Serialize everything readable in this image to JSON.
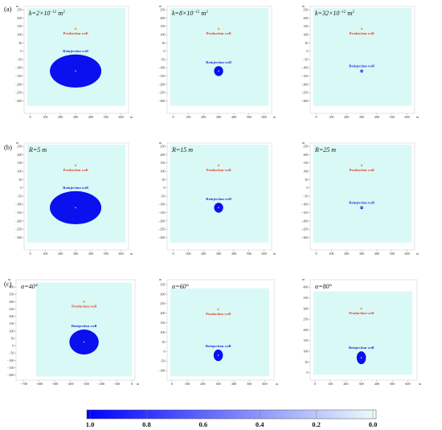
{
  "colors": {
    "domain": "#d9f9f7",
    "plume": "#0a10ee",
    "production_label": "#e33b1f",
    "reinjection_label": "#1b2ad6",
    "production_marker": "#f2a640",
    "colorbar_start": "#0000ff",
    "colorbar_end": "#eefcfb"
  },
  "row_labels": [
    "(a)",
    "(b)",
    "(c)"
  ],
  "well_labels": {
    "production": "Production well",
    "reinjection": "Reinjection well"
  },
  "axis_unit": "m",
  "panels": [
    {
      "title": {
        "prefix": "k=2×10",
        "sup": "−12",
        "suffix": " m",
        "sup2": "2"
      },
      "x": {
        "min": -40,
        "max": 650,
        "ticks": [
          "0",
          "100",
          "200",
          "300",
          "400",
          "500",
          "600"
        ]
      },
      "y": {
        "min": -375,
        "max": 270,
        "ticks": [
          "250",
          "200",
          "150",
          "100",
          "50",
          "0",
          "−50",
          "−100",
          "−150",
          "−200",
          "−250",
          "−300"
        ]
      },
      "domain_bounds": {
        "x": [
          -20,
          630
        ],
        "y": [
          -330,
          260
        ]
      },
      "production_well": {
        "x": 300,
        "y": 135
      },
      "reinjection_well": {
        "x": 300,
        "y": -120
      },
      "plume": {
        "rx": 170,
        "ry": 100
      }
    },
    {
      "title": {
        "prefix": "k=8×10",
        "sup": "−12",
        "suffix": " m",
        "sup2": "2"
      },
      "x": {
        "min": -40,
        "max": 650,
        "ticks": [
          "0",
          "100",
          "200",
          "300",
          "400",
          "500",
          "600"
        ]
      },
      "y": {
        "min": -375,
        "max": 270,
        "ticks": [
          "250",
          "200",
          "150",
          "100",
          "50",
          "0",
          "−50",
          "−100",
          "−150",
          "−200",
          "−250",
          "−300"
        ]
      },
      "domain_bounds": {
        "x": [
          -20,
          630
        ],
        "y": [
          -330,
          260
        ]
      },
      "production_well": {
        "x": 300,
        "y": 135
      },
      "reinjection_well": {
        "x": 300,
        "y": -120
      },
      "plume": {
        "rx": 30,
        "ry": 30
      }
    },
    {
      "title": {
        "prefix": "k=32×10",
        "sup": "−12",
        "suffix": " m",
        "sup2": "2"
      },
      "x": {
        "min": -40,
        "max": 650,
        "ticks": [
          "0",
          "100",
          "200",
          "300",
          "400",
          "500",
          "600"
        ]
      },
      "y": {
        "min": -375,
        "max": 270,
        "ticks": [
          "250",
          "200",
          "150",
          "100",
          "50",
          "0",
          "−50",
          "−100",
          "−150",
          "−200",
          "−250",
          "−300"
        ]
      },
      "domain_bounds": {
        "x": [
          -20,
          630
        ],
        "y": [
          -330,
          260
        ]
      },
      "production_well": {
        "x": 300,
        "y": 135
      },
      "reinjection_well": {
        "x": 300,
        "y": -120
      },
      "plume": {
        "rx": 9,
        "ry": 9
      }
    },
    {
      "title": {
        "prefix": "R=5 m"
      },
      "x": {
        "min": -40,
        "max": 650,
        "ticks": [
          "0",
          "100",
          "200",
          "300",
          "400",
          "500",
          "600"
        ]
      },
      "y": {
        "min": -375,
        "max": 270,
        "ticks": [
          "250",
          "200",
          "150",
          "100",
          "50",
          "0",
          "−50",
          "−100",
          "−150",
          "−200",
          "−250",
          "−300"
        ]
      },
      "domain_bounds": {
        "x": [
          -20,
          630
        ],
        "y": [
          -330,
          260
        ]
      },
      "production_well": {
        "x": 300,
        "y": 135
      },
      "reinjection_well": {
        "x": 300,
        "y": -120
      },
      "plume": {
        "rx": 170,
        "ry": 100
      }
    },
    {
      "title": {
        "prefix": "R=15 m"
      },
      "x": {
        "min": -40,
        "max": 650,
        "ticks": [
          "0",
          "100",
          "200",
          "300",
          "400",
          "500",
          "600"
        ]
      },
      "y": {
        "min": -375,
        "max": 270,
        "ticks": [
          "250",
          "200",
          "150",
          "100",
          "50",
          "0",
          "−50",
          "−100",
          "−150",
          "−200",
          "−250",
          "−300"
        ]
      },
      "domain_bounds": {
        "x": [
          -20,
          630
        ],
        "y": [
          -330,
          260
        ]
      },
      "production_well": {
        "x": 300,
        "y": 135
      },
      "reinjection_well": {
        "x": 300,
        "y": -120
      },
      "plume": {
        "rx": 30,
        "ry": 30
      }
    },
    {
      "title": {
        "prefix": "R=25 m"
      },
      "x": {
        "min": -40,
        "max": 650,
        "ticks": [
          "0",
          "100",
          "200",
          "300",
          "400",
          "500",
          "600"
        ]
      },
      "y": {
        "min": -375,
        "max": 270,
        "ticks": [
          "250",
          "200",
          "150",
          "100",
          "50",
          "0",
          "−50",
          "−100",
          "−150",
          "−200",
          "−250",
          "−300"
        ]
      },
      "domain_bounds": {
        "x": [
          -20,
          630
        ],
        "y": [
          -330,
          260
        ]
      },
      "production_well": {
        "x": 300,
        "y": 135
      },
      "reinjection_well": {
        "x": 300,
        "y": -120
      },
      "plume": {
        "rx": 9,
        "ry": 9
      }
    },
    {
      "title": {
        "prefix": "α=40°"
      },
      "x": {
        "min": -750,
        "max": 20,
        "ticks": [
          "−700",
          "−600",
          "−500",
          "−400",
          "−300",
          "−200",
          "−100",
          "0"
        ]
      },
      "y": {
        "min": -235,
        "max": 450,
        "ticks": [
          "400",
          "350",
          "300",
          "250",
          "200",
          "150",
          "100",
          "50",
          "0",
          "−50",
          "−100",
          "−150",
          "−200"
        ]
      },
      "domain_bounds": {
        "x": [
          -620,
          0
        ],
        "y": [
          -210,
          430
        ]
      },
      "production_well": {
        "x": -310,
        "y": 300
      },
      "reinjection_well": {
        "x": -310,
        "y": 25
      },
      "plume": {
        "rx": 95,
        "ry": 85
      }
    },
    {
      "title": {
        "prefix": "α=60°"
      },
      "x": {
        "min": -30,
        "max": 660,
        "ticks": [
          "0",
          "100",
          "200",
          "300",
          "400",
          "500",
          "600"
        ]
      },
      "y": {
        "min": -150,
        "max": 375,
        "ticks": [
          "350",
          "300",
          "250",
          "200",
          "150",
          "100",
          "50",
          "0",
          "−50",
          "−100"
        ]
      },
      "domain_bounds": {
        "x": [
          -10,
          630
        ],
        "y": [
          -130,
          330
        ]
      },
      "production_well": {
        "x": 300,
        "y": 220
      },
      "reinjection_well": {
        "x": 300,
        "y": -20
      },
      "plume": {
        "rx": 30,
        "ry": 30
      }
    },
    {
      "title": {
        "prefix": "α=80°"
      },
      "x": {
        "min": -30,
        "max": 660,
        "ticks": [
          "0",
          "100",
          "200",
          "300",
          "400",
          "500",
          "600"
        ]
      },
      "y": {
        "min": -35,
        "max": 435,
        "ticks": [
          "400",
          "350",
          "300",
          "250",
          "200",
          "150",
          "100",
          "50",
          "0"
        ]
      },
      "domain_bounds": {
        "x": [
          -10,
          630
        ],
        "y": [
          -10,
          380
        ]
      },
      "production_well": {
        "x": 300,
        "y": 300
      },
      "reinjection_well": {
        "x": 300,
        "y": 70
      },
      "plume": {
        "rx": 30,
        "ry": 30
      }
    }
  ],
  "colorbar": {
    "ticks": [
      "1.0",
      "0.8",
      "0.6",
      "0.4",
      "0.2",
      "0.0"
    ]
  }
}
